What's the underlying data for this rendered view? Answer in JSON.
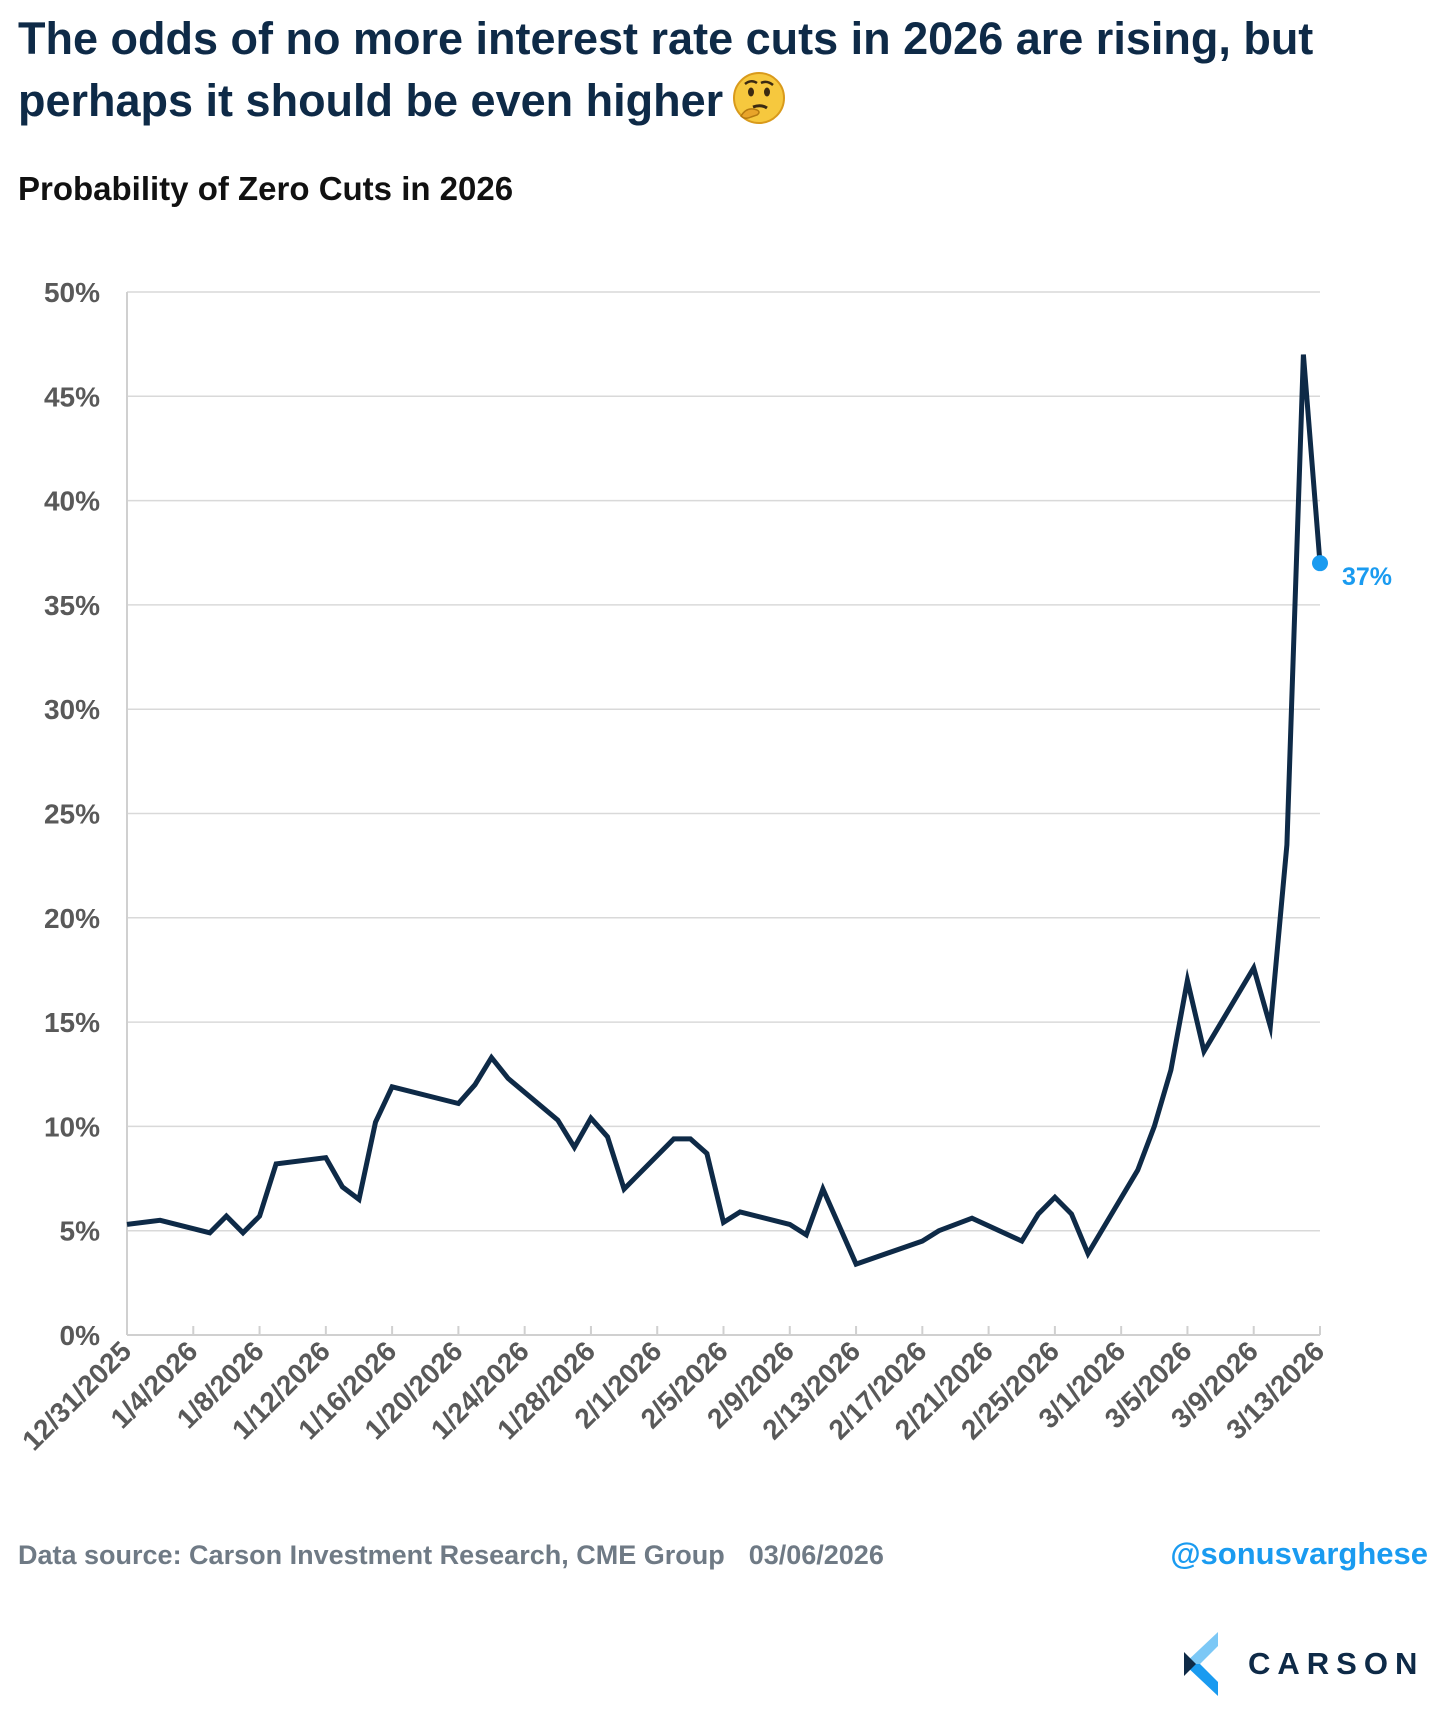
{
  "title": "The odds of no more interest rate cuts in 2026 are rising, but perhaps it should be even higher",
  "title_emoji": "thinking-face-icon",
  "footer": {
    "source": "Data source: Carson Investment Research, CME Group",
    "date": "03/06/2026",
    "handle": "@sonusvarghese",
    "logo": "CARSON"
  },
  "colors": {
    "line": "#0e2a47",
    "accent": "#1a9bf0",
    "grid": "#d9d9d9",
    "tick": "#595959"
  },
  "chart_data": {
    "type": "line",
    "title": "Probability of Zero Cuts in 2026",
    "xlabel": "",
    "ylabel": "",
    "ylim": [
      0,
      50
    ],
    "yticks": [
      0,
      5,
      10,
      15,
      20,
      25,
      30,
      35,
      40,
      45,
      50
    ],
    "ytick_labels": [
      "0%",
      "5%",
      "10%",
      "15%",
      "20%",
      "25%",
      "30%",
      "35%",
      "40%",
      "45%",
      "50%"
    ],
    "xlim": [
      "12/31/2025",
      "3/13/2026"
    ],
    "xtick_labels": [
      "12/31/2025",
      "1/4/2026",
      "1/8/2026",
      "1/12/2026",
      "1/16/2026",
      "1/20/2026",
      "1/24/2026",
      "1/28/2026",
      "2/1/2026",
      "2/5/2026",
      "2/9/2026",
      "2/13/2026",
      "2/17/2026",
      "2/21/2026",
      "2/25/2026",
      "3/1/2026",
      "3/5/2026",
      "3/9/2026",
      "3/13/2026"
    ],
    "grid": true,
    "series": [
      {
        "name": "Probability of Zero Cuts in 2026",
        "x": [
          "12/31/2025",
          "1/2/2026",
          "1/5/2026",
          "1/6/2026",
          "1/7/2026",
          "1/8/2026",
          "1/9/2026",
          "1/12/2026",
          "1/13/2026",
          "1/14/2026",
          "1/15/2026",
          "1/16/2026",
          "1/20/2026",
          "1/21/2026",
          "1/22/2026",
          "1/23/2026",
          "1/26/2026",
          "1/27/2026",
          "1/28/2026",
          "1/29/2026",
          "1/30/2026",
          "2/2/2026",
          "2/3/2026",
          "2/4/2026",
          "2/5/2026",
          "2/6/2026",
          "2/9/2026",
          "2/10/2026",
          "2/11/2026",
          "2/12/2026",
          "2/13/2026",
          "2/17/2026",
          "2/18/2026",
          "2/20/2026",
          "2/23/2026",
          "2/24/2026",
          "2/25/2026",
          "2/26/2026",
          "2/27/2026",
          "3/2/2026",
          "3/3/2026",
          "3/4/2026",
          "3/5/2026",
          "3/6/2026",
          "3/9/2026",
          "3/10/2026",
          "3/11/2026",
          "3/12/2026",
          "3/13/2026"
        ],
        "y": [
          5.3,
          5.5,
          4.9,
          5.7,
          4.9,
          5.7,
          8.2,
          8.5,
          7.1,
          6.5,
          10.2,
          11.9,
          11.1,
          12.0,
          13.3,
          12.3,
          10.3,
          9.0,
          10.4,
          9.5,
          7.0,
          9.4,
          9.4,
          8.7,
          5.4,
          5.9,
          5.3,
          4.8,
          7.0,
          5.2,
          3.4,
          4.5,
          5.0,
          5.6,
          4.5,
          5.8,
          6.6,
          5.8,
          3.9,
          7.9,
          10.0,
          12.7,
          17.0,
          13.6,
          17.6,
          14.8,
          23.5,
          47.0,
          37.0
        ]
      }
    ],
    "annotations": [
      {
        "x": "3/13/2026",
        "y": 37,
        "label": "37%"
      }
    ]
  }
}
